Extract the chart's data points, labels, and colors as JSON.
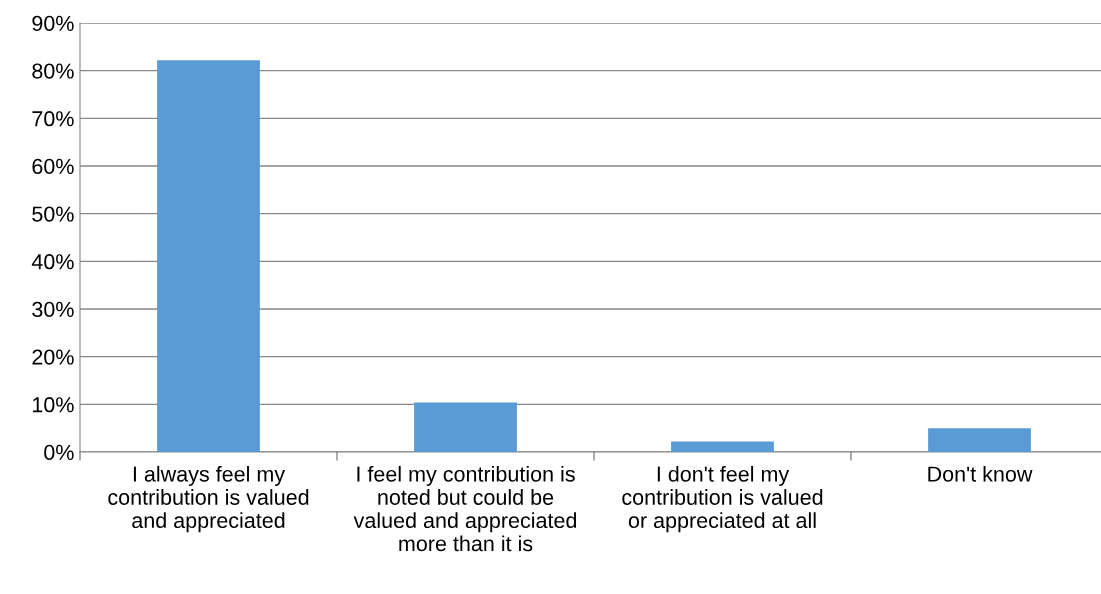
{
  "chart_data": {
    "type": "bar",
    "categories": [
      "I always feel my\ncontribution is valued\nand appreciated",
      "I feel my contribution is\nnoted but could be\nvalued and appreciated\nmore than it is",
      "I don't feel my\ncontribution is valued\nor appreciated at all",
      "Don't know"
    ],
    "values": [
      82.2,
      10.4,
      2.2,
      5.0
    ],
    "color": "#5b9bd5",
    "ylim": [
      0,
      90
    ],
    "yticks": [
      {
        "value": 0,
        "label": "0%"
      },
      {
        "value": 10,
        "label": "10%"
      },
      {
        "value": 20,
        "label": "20%"
      },
      {
        "value": 30,
        "label": "30%"
      },
      {
        "value": 40,
        "label": "40%"
      },
      {
        "value": 50,
        "label": "50%"
      },
      {
        "value": 60,
        "label": "60%"
      },
      {
        "value": 70,
        "label": "70%"
      },
      {
        "value": 80,
        "label": "80%"
      },
      {
        "value": 90,
        "label": "90%"
      }
    ],
    "grid": "y",
    "legend": false
  }
}
